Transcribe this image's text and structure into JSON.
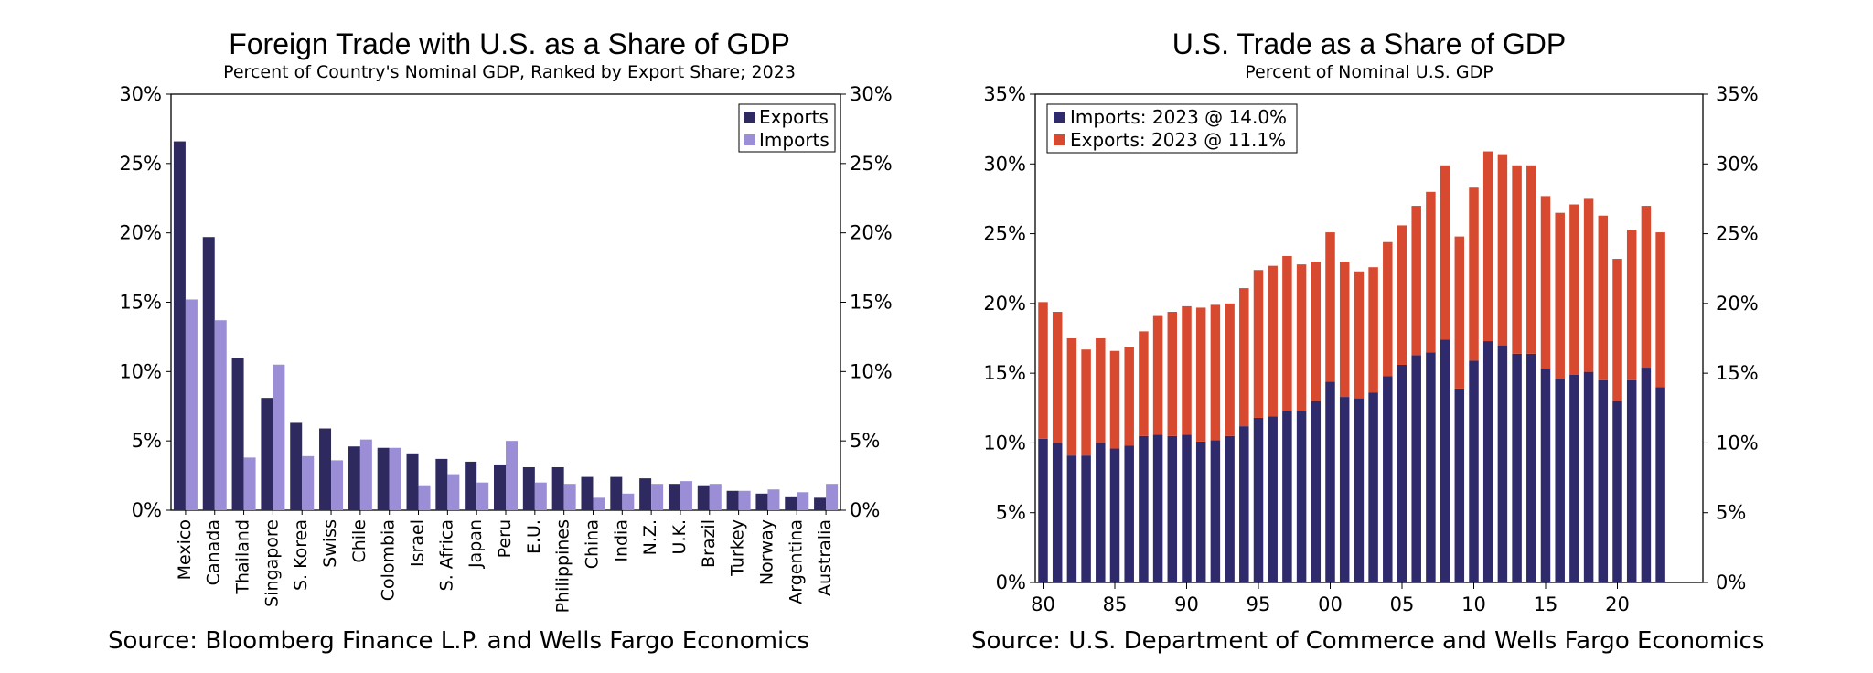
{
  "chart_data": [
    {
      "type": "bar",
      "title": "Foreign Trade with U.S. as a Share of GDP",
      "subtitle": "Percent of Country's Nominal GDP, Ranked by Export Share; 2023",
      "categories": [
        "Mexico",
        "Canada",
        "Thailand",
        "Singapore",
        "S. Korea",
        "Swiss",
        "Chile",
        "Colombia",
        "Israel",
        "S. Africa",
        "Japan",
        "Peru",
        "E.U.",
        "Philippines",
        "China",
        "India",
        "N.Z.",
        "U.K.",
        "Brazil",
        "Turkey",
        "Norway",
        "Argentina",
        "Australia"
      ],
      "series": [
        {
          "name": "Exports",
          "color": "#2e2a60",
          "values": [
            26.6,
            19.7,
            11.0,
            8.1,
            6.3,
            5.9,
            4.6,
            4.5,
            4.1,
            3.7,
            3.5,
            3.3,
            3.1,
            3.1,
            2.4,
            2.4,
            2.3,
            1.9,
            1.8,
            1.4,
            1.2,
            1.0,
            0.9
          ]
        },
        {
          "name": "Imports",
          "color": "#9b8ed6",
          "values": [
            15.2,
            13.7,
            3.8,
            10.5,
            3.9,
            3.6,
            5.1,
            4.5,
            1.8,
            2.6,
            2.0,
            5.0,
            2.0,
            1.9,
            0.9,
            1.2,
            1.9,
            2.1,
            1.9,
            1.4,
            1.5,
            1.3,
            1.9
          ]
        }
      ],
      "ylim": [
        0,
        30
      ],
      "yticks": [
        "0%",
        "5%",
        "10%",
        "15%",
        "20%",
        "25%",
        "30%"
      ],
      "xlabel": "",
      "ylabel": "",
      "legend": "top-right",
      "grid": false,
      "source": "Source: Bloomberg Finance L.P. and Wells Fargo Economics"
    },
    {
      "type": "bar",
      "stacked": true,
      "title": "U.S. Trade as a Share of GDP",
      "subtitle": "Percent of Nominal U.S. GDP",
      "x": [
        1980,
        1981,
        1982,
        1983,
        1984,
        1985,
        1986,
        1987,
        1988,
        1989,
        1990,
        1991,
        1992,
        1993,
        1994,
        1995,
        1996,
        1997,
        1998,
        1999,
        2000,
        2001,
        2002,
        2003,
        2004,
        2005,
        2006,
        2007,
        2008,
        2009,
        2010,
        2011,
        2012,
        2013,
        2014,
        2015,
        2016,
        2017,
        2018,
        2019,
        2020,
        2021,
        2022,
        2023
      ],
      "xticks": [
        "80",
        "85",
        "90",
        "95",
        "00",
        "05",
        "10",
        "15",
        "20"
      ],
      "series": [
        {
          "name": "Imports: 2023 @ 14.0%",
          "color": "#2e2a6b",
          "values": [
            10.3,
            10.0,
            9.1,
            9.1,
            10.0,
            9.6,
            9.8,
            10.5,
            10.6,
            10.5,
            10.6,
            10.1,
            10.2,
            10.5,
            11.2,
            11.8,
            11.9,
            12.3,
            12.3,
            13.0,
            14.4,
            13.3,
            13.2,
            13.6,
            14.8,
            15.6,
            16.3,
            16.5,
            17.4,
            13.9,
            15.9,
            17.3,
            17.0,
            16.4,
            16.4,
            15.3,
            14.6,
            14.9,
            15.1,
            14.5,
            13.0,
            14.5,
            15.4,
            14.0
          ]
        },
        {
          "name": "Exports: 2023 @ 11.1%",
          "color": "#d84a30",
          "values": [
            9.8,
            9.4,
            8.4,
            7.6,
            7.5,
            7.0,
            7.1,
            7.5,
            8.5,
            8.9,
            9.2,
            9.6,
            9.7,
            9.5,
            9.9,
            10.6,
            10.8,
            11.1,
            10.5,
            10.0,
            10.7,
            9.7,
            9.1,
            9.0,
            9.6,
            10.0,
            10.7,
            11.5,
            12.5,
            10.9,
            12.4,
            13.6,
            13.7,
            13.5,
            13.5,
            12.4,
            11.9,
            12.2,
            12.4,
            11.8,
            10.2,
            10.8,
            11.6,
            11.1
          ]
        }
      ],
      "ylim": [
        0,
        35
      ],
      "yticks": [
        "0%",
        "5%",
        "10%",
        "15%",
        "20%",
        "25%",
        "30%",
        "35%"
      ],
      "xlabel": "",
      "ylabel": "",
      "legend": "top-left",
      "grid": false,
      "source": "Source: U.S. Department of Commerce and Wells Fargo Economics"
    }
  ]
}
